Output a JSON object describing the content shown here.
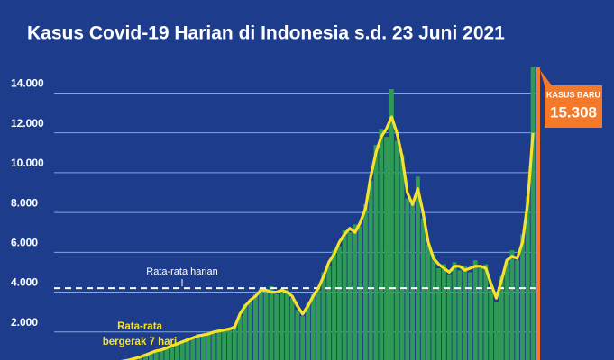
{
  "chart_data": {
    "type": "bar",
    "title": "Kasus Covid-19 Harian di Indonesia s.d. 23 Juni 2021",
    "ylim": [
      0,
      18000
    ],
    "yticks": [
      {
        "value": 2000,
        "label": "2.000"
      },
      {
        "value": 4000,
        "label": "4.000"
      },
      {
        "value": 6000,
        "label": "6.000"
      },
      {
        "value": 8000,
        "label": "8.000"
      },
      {
        "value": 10000,
        "label": "10.000"
      },
      {
        "value": 12000,
        "label": "12.000"
      },
      {
        "value": 14000,
        "label": "14.000"
      }
    ],
    "grid": true,
    "series": [
      {
        "color": "#2f9a55",
        "values": [
          0,
          5,
          20,
          60,
          90,
          170,
          180,
          280,
          310,
          330,
          420,
          430,
          520,
          540,
          640,
          700,
          720,
          880,
          900,
          1100,
          1050,
          1250,
          1280,
          1450,
          1450,
          1700,
          1650,
          1900,
          1800,
          1950,
          2000,
          2100,
          2050,
          2200,
          2300,
          2800,
          3400,
          3500,
          3900,
          4200,
          4000,
          4300,
          3900,
          4200,
          4100,
          3700,
          3100,
          2800,
          3400,
          3900,
          4100,
          5000,
          5300,
          6100,
          6300,
          7100,
          7000,
          7400,
          7300,
          8400,
          9600,
          11400,
          12200,
          11800,
          14200,
          11600,
          10900,
          8700,
          8600,
          9800,
          7700,
          6400,
          5900,
          5200,
          5400,
          4900,
          5500,
          5100,
          5300,
          5000,
          5600,
          5200,
          5400,
          4100,
          3500,
          4800,
          5500,
          6100,
          5600,
          6900,
          8800,
          15308
        ]
      },
      {
        "name": "Rata-rata bergerak 7 hari",
        "color": "#f7e22b",
        "values": [
          0,
          0,
          10,
          50,
          100,
          150,
          200,
          250,
          300,
          350,
          400,
          450,
          500,
          550,
          600,
          680,
          750,
          850,
          950,
          1050,
          1100,
          1200,
          1300,
          1400,
          1500,
          1600,
          1700,
          1800,
          1850,
          1900,
          2000,
          2050,
          2100,
          2150,
          2250,
          2900,
          3300,
          3600,
          3800,
          4100,
          4100,
          4000,
          4000,
          4100,
          4000,
          3800,
          3300,
          2900,
          3300,
          3800,
          4200,
          4800,
          5500,
          5900,
          6500,
          6900,
          7200,
          7000,
          7500,
          8200,
          9800,
          11000,
          11800,
          12200,
          12800,
          12000,
          10800,
          9000,
          8400,
          9200,
          8000,
          6500,
          5700,
          5400,
          5200,
          5000,
          5300,
          5300,
          5100,
          5200,
          5300,
          5300,
          5200,
          4400,
          3700,
          4600,
          5600,
          5800,
          5700,
          6500,
          8500,
          12000
        ]
      }
    ],
    "average": {
      "label": "Rata-rata harian",
      "value": 4200
    },
    "annotation": {
      "title": "KASUS BARU",
      "text": "15.308"
    }
  }
}
